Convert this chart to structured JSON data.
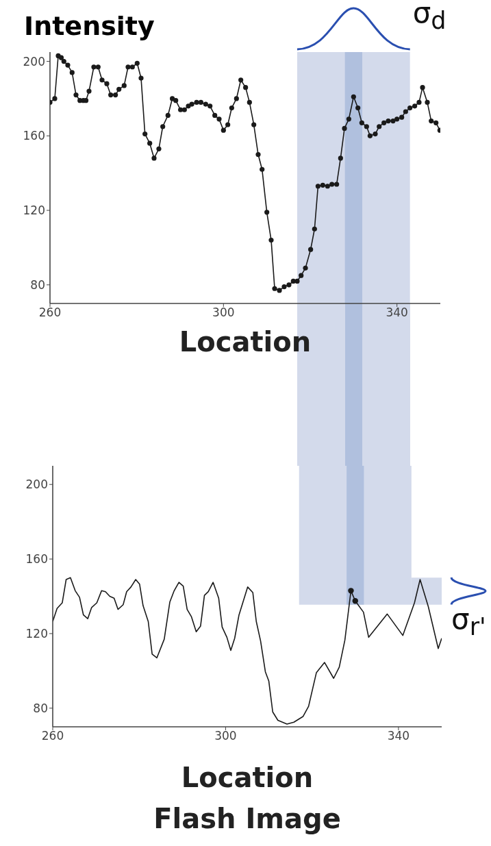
{
  "chart_data": [
    {
      "type": "line",
      "ylabel": "Intensity",
      "xlabel": "Location",
      "annotations": [
        "σ$_{d}$"
      ],
      "marker": "circle",
      "xlim": [
        260,
        350
      ],
      "ylim": [
        70,
        205
      ],
      "xticks": [
        260,
        300,
        340
      ],
      "yticks": [
        80,
        120,
        160,
        200
      ],
      "bands": [
        {
          "axis": "x",
          "from": 317,
          "to": 343,
          "color": "#d3daeb"
        },
        {
          "axis": "x",
          "from": 328,
          "to": 332,
          "color": "#b0c0de"
        }
      ],
      "series": [
        {
          "color": "#1a1a1a",
          "x": [
            260,
            261.1,
            261.9,
            262.6,
            263.2,
            264.1,
            265.1,
            266,
            266.9,
            267.7,
            268.3,
            269,
            270.1,
            271.1,
            272,
            273.1,
            274,
            275.1,
            275.9,
            277.1,
            278,
            279,
            280.1,
            281,
            281.9,
            283,
            284,
            285.1,
            286,
            287.2,
            288.2,
            289,
            290.1,
            291,
            291.9,
            292.7,
            293.8,
            294.8,
            295.9,
            296.9,
            298,
            299,
            300,
            301,
            301.9,
            303,
            304,
            305.1,
            306,
            307,
            308,
            308.9,
            310,
            311,
            311.8,
            312.9,
            314,
            315.1,
            316.1,
            317,
            317.9,
            318.9,
            320.1,
            321,
            321.8,
            322.9,
            324,
            325,
            326.1,
            327,
            327.9,
            328.9,
            330,
            331,
            331.9,
            333,
            333.8,
            335,
            335.9,
            337,
            338,
            339.1,
            340,
            341.1,
            342,
            343,
            344.1,
            345.1,
            345.9,
            347,
            347.9,
            349,
            349.9
          ],
          "values": [
            178,
            180,
            203,
            202,
            200,
            198,
            194,
            182,
            179,
            179,
            179,
            184,
            197,
            197,
            190,
            188,
            182,
            182,
            185,
            187,
            197,
            197,
            199,
            191,
            161,
            156,
            148,
            153,
            165,
            171,
            180,
            179,
            174,
            174,
            176,
            177,
            178,
            178,
            177,
            176,
            171,
            169,
            163,
            166,
            175,
            180,
            190,
            186,
            178,
            166,
            150,
            142,
            119,
            104,
            78,
            77,
            79,
            80,
            82,
            82,
            85,
            89,
            99,
            110,
            133,
            133.5,
            133,
            134,
            134,
            148,
            164,
            169,
            181,
            175,
            167,
            165,
            160,
            161,
            165,
            167,
            168,
            168,
            169,
            170,
            173,
            175,
            176,
            178,
            186,
            178,
            168,
            167,
            163
          ]
        }
      ]
    },
    {
      "type": "line",
      "xlabel": "Location",
      "annotations": [
        "σ$_{r'}$",
        "Flash Image"
      ],
      "marker": "none",
      "xlim": [
        260,
        350
      ],
      "ylim": [
        70,
        210
      ],
      "xticks": [
        260,
        300,
        340
      ],
      "yticks": [
        80,
        120,
        160,
        200
      ],
      "bands": [
        {
          "axis": "x",
          "from": 317,
          "to": 343,
          "color": "#d3daeb"
        },
        {
          "axis": "x",
          "from": 328,
          "to": 332,
          "color": "#b0c0de"
        },
        {
          "axis": "y",
          "from": 135.5,
          "to": 150,
          "color": "#d3daeb"
        }
      ],
      "series": [
        {
          "color": "#1a1a1a",
          "x": [
            260,
            261,
            262.2,
            263.1,
            264.1,
            265.2,
            266.2,
            267.1,
            268.1,
            269,
            270.2,
            271.3,
            272.2,
            273.2,
            274.2,
            275.1,
            276.3,
            277.1,
            278.1,
            279.2,
            280.1,
            280.9,
            282.1,
            283,
            284.1,
            285.8,
            287.1,
            288.1,
            289.2,
            290.2,
            291.1,
            292.1,
            293.2,
            294.2,
            295.1,
            296,
            297.1,
            298.4,
            299.2,
            300.3,
            301.2,
            302.1,
            303.1,
            305.1,
            306.3,
            307.1,
            308.1,
            309.2,
            310,
            310.9,
            312.1,
            314.2,
            315.8,
            317.9,
            319.2,
            321,
            322.9,
            325,
            326.3,
            327.6,
            329,
            330,
            331.9,
            333.1,
            337.4,
            341,
            343.7,
            345,
            346.9,
            349.2,
            350
          ],
          "values": [
            126.5,
            133.5,
            136.5,
            149,
            150,
            143,
            139.5,
            130,
            128,
            134,
            136.5,
            143,
            142.5,
            140,
            139,
            133,
            135.5,
            142.5,
            145,
            149,
            146.5,
            135,
            126.5,
            109,
            107,
            117,
            137,
            143,
            147.5,
            145.5,
            133,
            129,
            121,
            124,
            140.5,
            142.5,
            147.5,
            139,
            123.5,
            118,
            111,
            117.5,
            130,
            145,
            142,
            126.5,
            116,
            99.5,
            94.5,
            78,
            73.5,
            71.5,
            72.5,
            75.5,
            81,
            99,
            104.5,
            96,
            102,
            116.5,
            143,
            137.5,
            131.5,
            118,
            130.5,
            119,
            136.5,
            149,
            134.5,
            112,
            117.5
          ]
        },
        {
          "type": "scatter",
          "marker": "circle",
          "color": "#1a1a1a",
          "x": [
            329,
            330
          ],
          "values": [
            143,
            137.5
          ]
        }
      ]
    }
  ]
}
